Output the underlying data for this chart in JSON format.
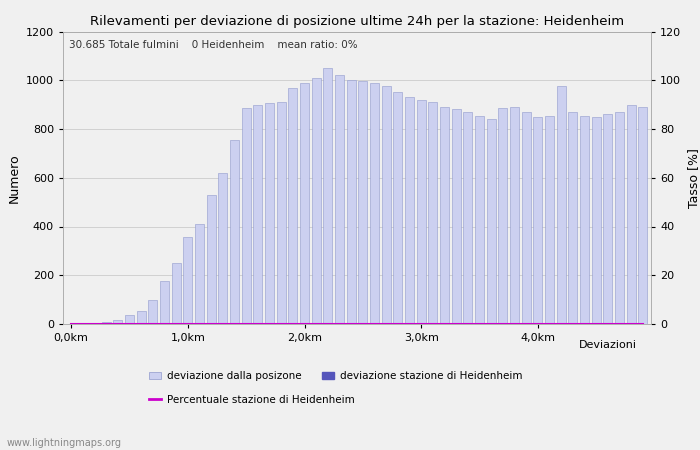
{
  "title": "Rilevamenti per deviazione di posizione ultime 24h per la stazione: Heidenheim",
  "subtitle": "30.685 Totale fulmini    0 Heidenheim    mean ratio: 0%",
  "xlabel": "Deviazioni",
  "ylabel_left": "Numero",
  "ylabel_right": "Tasso [%]",
  "xtick_labels": [
    "0,0km",
    "1,0km",
    "2,0km",
    "3,0km",
    "4,0km"
  ],
  "xtick_positions": [
    0,
    10,
    20,
    30,
    40
  ],
  "ylim_left": [
    0,
    1200
  ],
  "ylim_right": [
    0,
    120
  ],
  "yticks_left": [
    0,
    200,
    400,
    600,
    800,
    1000,
    1200
  ],
  "yticks_right": [
    0,
    20,
    40,
    60,
    80,
    100,
    120
  ],
  "bar_color": "#ccd0f0",
  "bar_edge_color": "#9099cc",
  "highlight_color": "#5555bb",
  "line_color": "#cc00cc",
  "background_color": "#f0f0f0",
  "plot_bg_color": "#f0f0f0",
  "watermark": "www.lightningmaps.org",
  "legend_labels": [
    "deviazione dalla posizone",
    "deviazione stazione di Heidenheim",
    "Percentuale stazione di Heidenheim"
  ],
  "bar_values": [
    2,
    3,
    5,
    8,
    15,
    35,
    55,
    100,
    175,
    250,
    355,
    410,
    530,
    620,
    755,
    885,
    900,
    905,
    910,
    970,
    990,
    1010,
    1050,
    1020,
    1000,
    995,
    990,
    975,
    950,
    930,
    920,
    910,
    890,
    880,
    870,
    855,
    840,
    885,
    890,
    870,
    850,
    855,
    975,
    870,
    855,
    850,
    860,
    870,
    900,
    890
  ],
  "line_values": [
    0,
    0,
    0,
    0,
    0,
    0,
    0,
    0,
    0,
    0,
    0,
    0,
    0,
    0,
    0,
    0,
    0,
    0,
    0,
    0,
    0,
    0,
    0,
    0,
    0,
    0,
    0,
    0,
    0,
    0,
    0,
    0,
    0,
    0,
    0,
    0,
    0,
    0,
    0,
    0,
    0,
    0,
    0,
    0,
    0,
    0,
    0,
    0,
    0,
    0
  ],
  "figsize": [
    7.0,
    4.5
  ],
  "dpi": 100
}
